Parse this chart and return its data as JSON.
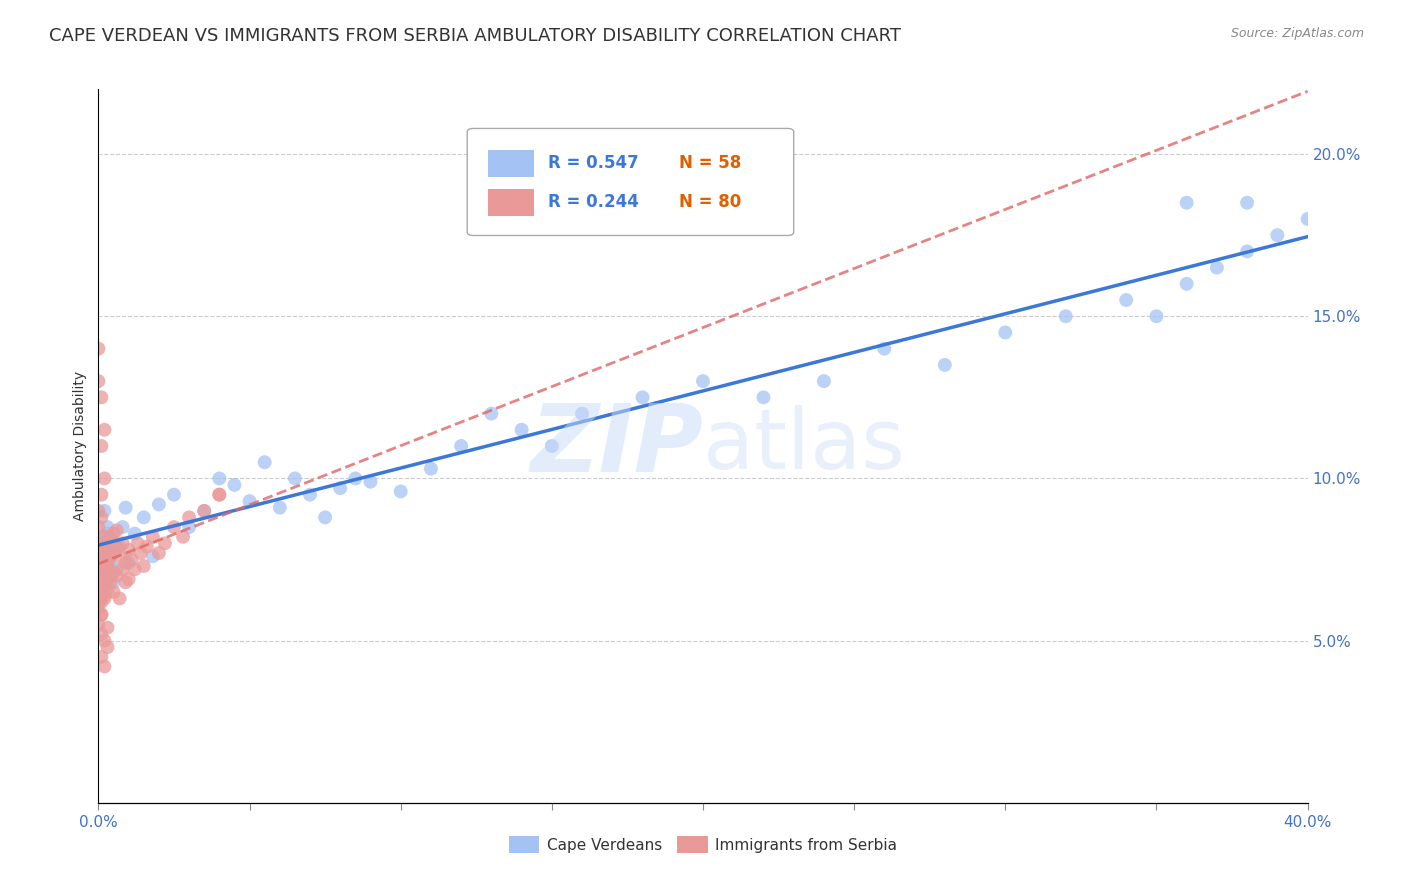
{
  "title": "CAPE VERDEAN VS IMMIGRANTS FROM SERBIA AMBULATORY DISABILITY CORRELATION CHART",
  "source_text": "Source: ZipAtlas.com",
  "ylabel": "Ambulatory Disability",
  "xlabel": "",
  "xlim": [
    0.0,
    0.4
  ],
  "ylim": [
    0.0,
    0.22
  ],
  "xtick_positions": [
    0.0,
    0.05,
    0.1,
    0.15,
    0.2,
    0.25,
    0.3,
    0.35,
    0.4
  ],
  "xtick_labels_show": {
    "0.0": "0.0%",
    "0.40": "40.0%"
  },
  "ytick_positions": [
    0.05,
    0.1,
    0.15,
    0.2
  ],
  "yticklabels": [
    "5.0%",
    "10.0%",
    "15.0%",
    "20.0%"
  ],
  "series1_color": "#a4c2f4",
  "series2_color": "#ea9999",
  "line1_color": "#3c78d8",
  "line2_color": "#e06666",
  "ref_line_color": "#cc99cc",
  "R1": 0.547,
  "N1": 58,
  "R2": 0.244,
  "N2": 80,
  "legend1_label": "Cape Verdeans",
  "legend2_label": "Immigrants from Serbia",
  "watermark_zip": "ZIP",
  "watermark_atlas": "atlas",
  "title_fontsize": 13,
  "axis_label_fontsize": 10,
  "tick_fontsize": 11,
  "background_color": "#ffffff",
  "grid_color": "#cccccc",
  "cape_verdean_x": [
    0.001,
    0.001,
    0.002,
    0.002,
    0.003,
    0.003,
    0.003,
    0.004,
    0.004,
    0.005,
    0.005,
    0.006,
    0.007,
    0.008,
    0.009,
    0.01,
    0.012,
    0.015,
    0.018,
    0.02,
    0.025,
    0.03,
    0.035,
    0.04,
    0.045,
    0.05,
    0.055,
    0.06,
    0.065,
    0.07,
    0.075,
    0.08,
    0.085,
    0.09,
    0.1,
    0.11,
    0.12,
    0.13,
    0.14,
    0.15,
    0.16,
    0.18,
    0.2,
    0.22,
    0.24,
    0.26,
    0.28,
    0.3,
    0.32,
    0.34,
    0.35,
    0.36,
    0.37,
    0.38,
    0.39,
    0.4,
    0.38,
    0.36
  ],
  "cape_verdean_y": [
    0.075,
    0.082,
    0.07,
    0.09,
    0.085,
    0.078,
    0.083,
    0.073,
    0.076,
    0.08,
    0.068,
    0.072,
    0.079,
    0.085,
    0.091,
    0.074,
    0.083,
    0.088,
    0.076,
    0.092,
    0.095,
    0.085,
    0.09,
    0.1,
    0.098,
    0.093,
    0.105,
    0.091,
    0.1,
    0.095,
    0.088,
    0.097,
    0.1,
    0.099,
    0.096,
    0.103,
    0.11,
    0.12,
    0.115,
    0.11,
    0.12,
    0.125,
    0.13,
    0.125,
    0.13,
    0.14,
    0.135,
    0.145,
    0.15,
    0.155,
    0.15,
    0.16,
    0.165,
    0.17,
    0.175,
    0.18,
    0.185,
    0.185
  ],
  "serbia_x": [
    0.0,
    0.0,
    0.0,
    0.001,
    0.001,
    0.001,
    0.001,
    0.001,
    0.002,
    0.002,
    0.002,
    0.002,
    0.002,
    0.003,
    0.003,
    0.003,
    0.003,
    0.003,
    0.004,
    0.004,
    0.004,
    0.004,
    0.005,
    0.005,
    0.005,
    0.005,
    0.006,
    0.006,
    0.006,
    0.007,
    0.007,
    0.008,
    0.008,
    0.009,
    0.009,
    0.01,
    0.01,
    0.011,
    0.012,
    0.013,
    0.014,
    0.015,
    0.016,
    0.018,
    0.02,
    0.022,
    0.025,
    0.028,
    0.03,
    0.035,
    0.04,
    0.0,
    0.0,
    0.001,
    0.001,
    0.001,
    0.002,
    0.002,
    0.003,
    0.003,
    0.0,
    0.0,
    0.001,
    0.001,
    0.002,
    0.001,
    0.0,
    0.0,
    0.001,
    0.002,
    0.0,
    0.001,
    0.0,
    0.001,
    0.0,
    0.001,
    0.002,
    0.0,
    0.002,
    0.04
  ],
  "serbia_y": [
    0.07,
    0.065,
    0.072,
    0.068,
    0.075,
    0.08,
    0.062,
    0.058,
    0.078,
    0.072,
    0.067,
    0.063,
    0.082,
    0.074,
    0.069,
    0.08,
    0.065,
    0.073,
    0.076,
    0.07,
    0.082,
    0.068,
    0.077,
    0.083,
    0.071,
    0.065,
    0.079,
    0.084,
    0.07,
    0.076,
    0.063,
    0.08,
    0.072,
    0.068,
    0.074,
    0.069,
    0.078,
    0.075,
    0.072,
    0.08,
    0.077,
    0.073,
    0.079,
    0.082,
    0.077,
    0.08,
    0.085,
    0.082,
    0.088,
    0.09,
    0.095,
    0.06,
    0.055,
    0.052,
    0.058,
    0.045,
    0.05,
    0.042,
    0.048,
    0.054,
    0.14,
    0.13,
    0.125,
    0.11,
    0.115,
    0.095,
    0.09,
    0.085,
    0.088,
    0.1,
    0.075,
    0.068,
    0.073,
    0.078,
    0.066,
    0.071,
    0.076,
    0.062,
    0.064,
    0.095
  ]
}
